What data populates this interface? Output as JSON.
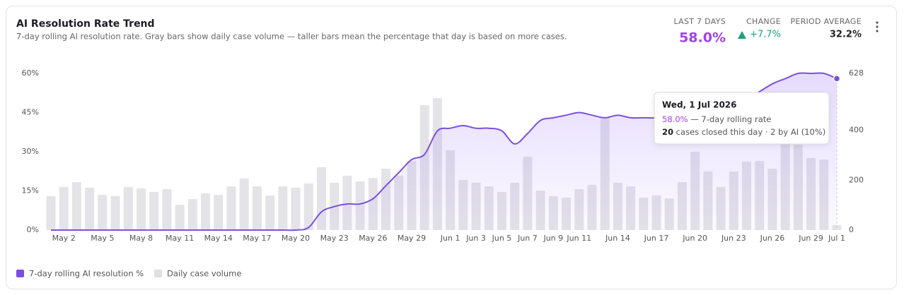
{
  "chart_data": {
    "type": "bar_line",
    "title": "AI Resolution Rate Trend",
    "subtitle": "7-day rolling AI resolution rate. Gray bars show daily case volume — taller bars mean the percentage that day is based on more cases.",
    "kpis": [
      {
        "label": "LAST 7 DAYS",
        "value": "58.0%",
        "color": "#a142e8"
      },
      {
        "label": "CHANGE",
        "value": "+7.7%",
        "color": "#1aa37a"
      },
      {
        "label": "PERIOD AVERAGE",
        "value": "32.2%",
        "color": "#222"
      }
    ],
    "categories": [
      null,
      "May 2",
      null,
      null,
      "May 5",
      null,
      null,
      "May 8",
      null,
      null,
      "May 11",
      null,
      null,
      "May 14",
      null,
      null,
      "May 17",
      null,
      null,
      "May 20",
      null,
      null,
      "May 23",
      null,
      null,
      "May 26",
      null,
      null,
      "May 29",
      null,
      null,
      "Jun 1",
      null,
      "Jun 3",
      null,
      "Jun 5",
      null,
      "Jun 7",
      null,
      "Jun 9",
      null,
      "Jun 11",
      null,
      null,
      "Jun 14",
      null,
      null,
      "Jun 17",
      null,
      null,
      "Jun 20",
      null,
      null,
      "Jun 23",
      null,
      null,
      "Jun 26",
      null,
      null,
      "Jun 29",
      null,
      "Jul 1"
    ],
    "series": [
      {
        "name": "7-day rolling AI resolution %",
        "color": "#7b4fe0",
        "axis": "y",
        "values": [
          0,
          0,
          0,
          0,
          0,
          0,
          0,
          0,
          0,
          0,
          0,
          0,
          0,
          0,
          0,
          0,
          0,
          0,
          0,
          0,
          1,
          7,
          9,
          10,
          10,
          12,
          17,
          22,
          27,
          29,
          38,
          39,
          40,
          39,
          39,
          38,
          33,
          37,
          42,
          43,
          44,
          45,
          44,
          43,
          44,
          43,
          43,
          43,
          44,
          45,
          46,
          47,
          47,
          48,
          50,
          53,
          56,
          58,
          60,
          60,
          60,
          58
        ]
      },
      {
        "name": "Daily case volume",
        "color": "#e4e4e8",
        "axis": "y2",
        "values": [
          136,
          173,
          192,
          170,
          141,
          136,
          173,
          167,
          153,
          164,
          102,
          124,
          147,
          141,
          175,
          207,
          175,
          139,
          175,
          170,
          187,
          252,
          190,
          218,
          195,
          209,
          246,
          218,
          277,
          501,
          529,
          320,
          201,
          190,
          175,
          153,
          190,
          294,
          158,
          136,
          130,
          164,
          181,
          453,
          190,
          175,
          130,
          139,
          127,
          192,
          314,
          235,
          173,
          235,
          274,
          277,
          246,
          345,
          342,
          289,
          283,
          20
        ]
      }
    ],
    "ylim": [
      0,
      60
    ],
    "yticks": [
      {
        "value": 0,
        "label": "0%"
      },
      {
        "value": 15,
        "label": "15%"
      },
      {
        "value": 30,
        "label": "30%"
      },
      {
        "value": 45,
        "label": "45%"
      },
      {
        "value": 60,
        "label": "60%"
      }
    ],
    "y2lim": [
      0,
      628
    ],
    "y2ticks": [
      0,
      200,
      400,
      628
    ],
    "tooltip": {
      "date": "Wed, 1 Jul 2026",
      "rate": "58.0%",
      "rate_text": "— 7-day rolling rate",
      "cases": "20",
      "cases_text": "cases closed this day · 2 by AI (10%)"
    }
  }
}
